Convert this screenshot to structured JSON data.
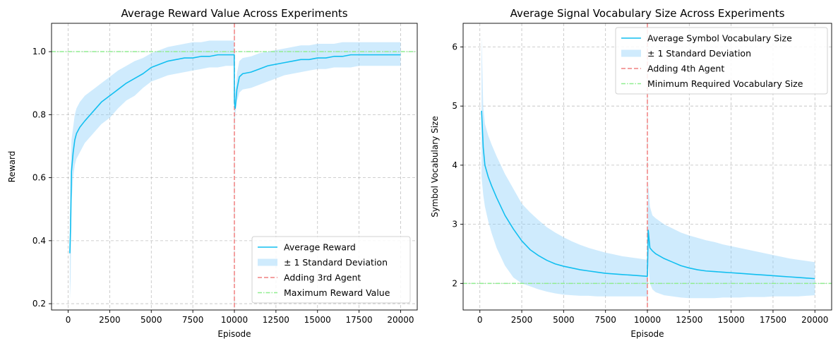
{
  "chart_data": [
    {
      "type": "line",
      "title": "Average Reward Value Across Experiments",
      "xlabel": "Episode",
      "ylabel": "Reward",
      "xlim": [
        -1000,
        21000
      ],
      "ylim": [
        0.18,
        1.09
      ],
      "xticks": [
        0,
        2500,
        5000,
        7500,
        10000,
        12500,
        15000,
        17500,
        20000
      ],
      "yticks": [
        0.2,
        0.4,
        0.6,
        0.8,
        1.0
      ],
      "ytick_format": 1,
      "grid": true,
      "legend_position": "lower-right",
      "colors": {
        "mean": "#12bff0",
        "band": "#87cefa",
        "vline": "#f08080",
        "hline": "#90ee90"
      },
      "series": [
        {
          "name": "Average Reward",
          "x": [
            100,
            150,
            200,
            300,
            400,
            500,
            700,
            1000,
            1500,
            2000,
            2500,
            3000,
            3500,
            4000,
            4500,
            5000,
            5500,
            6000,
            6500,
            7000,
            7500,
            8000,
            8500,
            9000,
            9500,
            9990,
            10000,
            10050,
            10150,
            10300,
            10500,
            11000,
            11500,
            12000,
            12500,
            13000,
            13500,
            14000,
            14500,
            15000,
            15500,
            16000,
            16500,
            17000,
            17500,
            18000,
            18500,
            19000,
            19500,
            20000
          ],
          "mean": [
            0.36,
            0.45,
            0.62,
            0.68,
            0.72,
            0.74,
            0.76,
            0.78,
            0.81,
            0.84,
            0.86,
            0.88,
            0.9,
            0.915,
            0.93,
            0.95,
            0.96,
            0.97,
            0.975,
            0.98,
            0.98,
            0.985,
            0.985,
            0.99,
            0.99,
            0.99,
            0.84,
            0.82,
            0.88,
            0.92,
            0.93,
            0.935,
            0.945,
            0.955,
            0.96,
            0.965,
            0.97,
            0.975,
            0.975,
            0.98,
            0.98,
            0.985,
            0.985,
            0.99,
            0.99,
            0.99,
            0.99,
            0.99,
            0.99,
            0.99
          ],
          "lower": [
            0.21,
            0.28,
            0.52,
            0.6,
            0.64,
            0.66,
            0.68,
            0.71,
            0.74,
            0.77,
            0.79,
            0.82,
            0.845,
            0.86,
            0.885,
            0.905,
            0.915,
            0.925,
            0.93,
            0.935,
            0.94,
            0.945,
            0.95,
            0.95,
            0.955,
            0.955,
            0.75,
            0.8,
            0.84,
            0.87,
            0.88,
            0.885,
            0.895,
            0.905,
            0.915,
            0.925,
            0.93,
            0.935,
            0.94,
            0.945,
            0.945,
            0.95,
            0.95,
            0.95,
            0.955,
            0.955,
            0.955,
            0.955,
            0.955,
            0.955
          ],
          "upper": [
            0.47,
            0.62,
            0.72,
            0.76,
            0.8,
            0.82,
            0.84,
            0.86,
            0.88,
            0.9,
            0.92,
            0.94,
            0.955,
            0.97,
            0.98,
            0.995,
            1.005,
            1.015,
            1.02,
            1.025,
            1.03,
            1.03,
            1.035,
            1.035,
            1.035,
            1.035,
            0.94,
            0.87,
            0.93,
            0.97,
            0.98,
            0.985,
            0.995,
            1.0,
            1.005,
            1.01,
            1.015,
            1.02,
            1.02,
            1.025,
            1.025,
            1.025,
            1.03,
            1.03,
            1.03,
            1.03,
            1.03,
            1.03,
            1.03,
            1.03
          ]
        }
      ],
      "band_label": "± 1 Standard Deviation",
      "vline": {
        "x": 10000,
        "label": "Adding 3rd Agent"
      },
      "hline": {
        "y": 1.0,
        "label": "Maximum Reward Value"
      }
    },
    {
      "type": "line",
      "title": "Average Signal Vocabulary Size Across Experiments",
      "xlabel": "Episode",
      "ylabel": "Symbol Vocabulary Size",
      "xlim": [
        -1000,
        21000
      ],
      "ylim": [
        1.55,
        6.4
      ],
      "xticks": [
        0,
        2500,
        5000,
        7500,
        10000,
        12500,
        15000,
        17500,
        20000
      ],
      "yticks": [
        2,
        3,
        4,
        5,
        6
      ],
      "ytick_format": 0,
      "grid": true,
      "legend_position": "top-right",
      "colors": {
        "mean": "#12bff0",
        "band": "#87cefa",
        "vline": "#f08080",
        "hline": "#90ee90"
      },
      "series": [
        {
          "name": "Average Symbol Vocabulary Size",
          "x": [
            100,
            200,
            300,
            500,
            700,
            1000,
            1500,
            2000,
            2500,
            3000,
            3500,
            4000,
            4500,
            5000,
            5500,
            6000,
            6500,
            7000,
            7500,
            8000,
            8500,
            9000,
            9500,
            9990,
            10000,
            10050,
            10150,
            10300,
            10500,
            11000,
            11500,
            12000,
            12500,
            13000,
            13500,
            14000,
            14500,
            15000,
            15500,
            16000,
            16500,
            17000,
            17500,
            18000,
            18500,
            19000,
            19500,
            20000
          ],
          "mean": [
            4.92,
            4.3,
            4.0,
            3.8,
            3.65,
            3.45,
            3.15,
            2.92,
            2.72,
            2.57,
            2.47,
            2.39,
            2.33,
            2.29,
            2.26,
            2.23,
            2.21,
            2.19,
            2.17,
            2.16,
            2.15,
            2.14,
            2.13,
            2.12,
            2.12,
            2.9,
            2.6,
            2.55,
            2.5,
            2.42,
            2.36,
            2.3,
            2.26,
            2.23,
            2.21,
            2.2,
            2.19,
            2.18,
            2.17,
            2.16,
            2.15,
            2.14,
            2.13,
            2.12,
            2.11,
            2.1,
            2.09,
            2.08
          ],
          "lower": [
            3.8,
            3.5,
            3.3,
            3.05,
            2.85,
            2.6,
            2.3,
            2.1,
            2.0,
            1.95,
            1.9,
            1.86,
            1.83,
            1.81,
            1.8,
            1.79,
            1.79,
            1.78,
            1.78,
            1.78,
            1.78,
            1.78,
            1.78,
            1.78,
            1.78,
            2.3,
            2.0,
            1.9,
            1.85,
            1.8,
            1.78,
            1.76,
            1.75,
            1.75,
            1.75,
            1.75,
            1.76,
            1.76,
            1.76,
            1.77,
            1.77,
            1.77,
            1.78,
            1.78,
            1.78,
            1.78,
            1.79,
            1.8
          ],
          "upper": [
            6.2,
            5.0,
            4.7,
            4.5,
            4.35,
            4.15,
            3.85,
            3.6,
            3.35,
            3.2,
            3.07,
            2.95,
            2.86,
            2.78,
            2.71,
            2.65,
            2.6,
            2.56,
            2.52,
            2.49,
            2.46,
            2.44,
            2.42,
            2.4,
            2.4,
            3.7,
            3.3,
            3.15,
            3.1,
            3.0,
            2.93,
            2.86,
            2.81,
            2.77,
            2.73,
            2.7,
            2.66,
            2.63,
            2.6,
            2.57,
            2.54,
            2.51,
            2.48,
            2.45,
            2.42,
            2.4,
            2.38,
            2.36
          ]
        }
      ],
      "band_label": "± 1 Standard Deviation",
      "vline": {
        "x": 10000,
        "label": "Adding 4th Agent"
      },
      "hline": {
        "y": 2.0,
        "label": "Minimum Required Vocabulary Size"
      }
    }
  ]
}
